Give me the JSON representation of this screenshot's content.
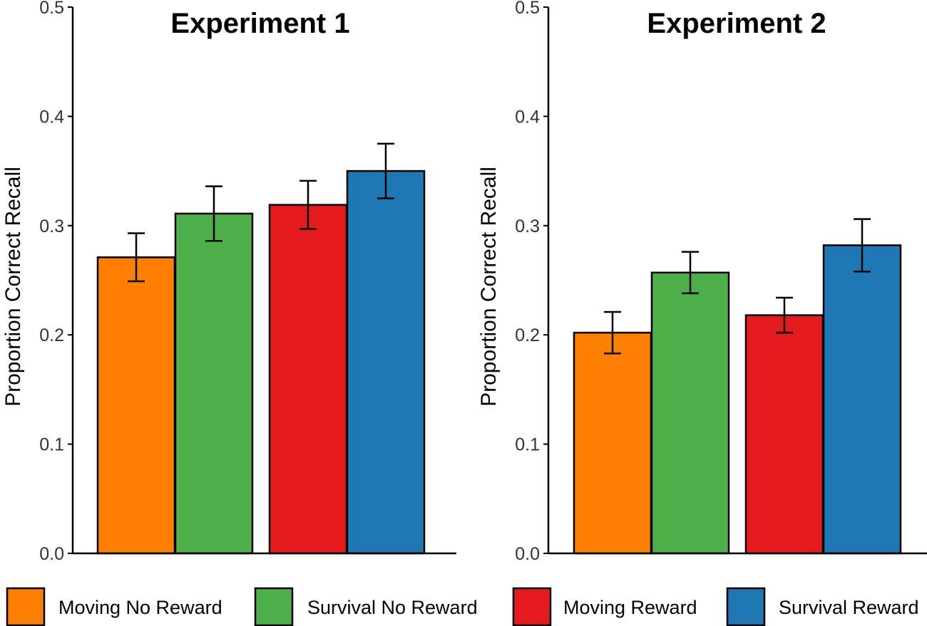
{
  "legend": {
    "placement": "bottom",
    "items": [
      {
        "label": "Moving No Reward",
        "color": "#FF7F00"
      },
      {
        "label": "Survival No Reward",
        "color": "#4DAF4A"
      },
      {
        "label": "Moving Reward",
        "color": "#E41A1C"
      },
      {
        "label": "Survival Reward",
        "color": "#1F78B4"
      }
    ]
  },
  "chart_data": [
    {
      "type": "bar",
      "title": "Experiment 1",
      "xlabel": "",
      "ylabel": "Proportion Correct Recall",
      "ylim": [
        0,
        0.5
      ],
      "yticks": [
        "0.0",
        "0.1",
        "0.2",
        "0.3",
        "0.4",
        "0.5"
      ],
      "grid": false,
      "categories": [
        "Moving No Reward",
        "Survival No Reward",
        "Moving Reward",
        "Survival Reward"
      ],
      "values": [
        0.271,
        0.311,
        0.319,
        0.35
      ],
      "errors": [
        0.022,
        0.025,
        0.022,
        0.025
      ]
    },
    {
      "type": "bar",
      "title": "Experiment 2",
      "xlabel": "",
      "ylabel": "Proportion Correct Recall",
      "ylim": [
        0,
        0.5
      ],
      "yticks": [
        "0.0",
        "0.1",
        "0.2",
        "0.3",
        "0.4",
        "0.5"
      ],
      "grid": false,
      "categories": [
        "Moving No Reward",
        "Survival No Reward",
        "Moving Reward",
        "Survival Reward"
      ],
      "values": [
        0.202,
        0.257,
        0.218,
        0.282
      ],
      "errors": [
        0.019,
        0.019,
        0.016,
        0.024
      ]
    }
  ]
}
